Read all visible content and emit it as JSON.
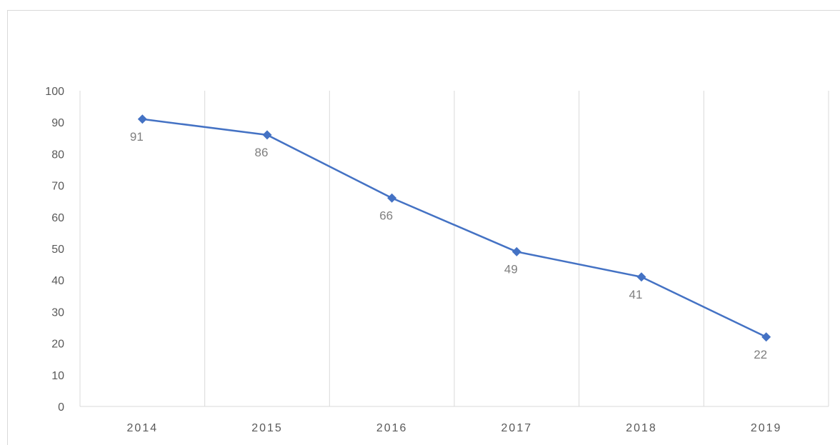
{
  "chart_data": {
    "type": "line",
    "categories": [
      "2014",
      "2015",
      "2016",
      "2017",
      "2018",
      "2019"
    ],
    "series": [
      {
        "values": [
          91,
          86,
          66,
          49,
          41,
          22
        ],
        "color": "#4472c4",
        "marker": "diamond"
      }
    ],
    "yticks": [
      "0",
      "10",
      "20",
      "30",
      "40",
      "50",
      "60",
      "70",
      "80",
      "90",
      "100"
    ],
    "ylim": [
      0,
      100
    ],
    "grid": "vertical",
    "data_labels": [
      "91",
      "86",
      "66",
      "49",
      "41",
      "22"
    ],
    "colors": {
      "line": "#4472c4",
      "grid": "#d9d9d9",
      "tick_text": "#595959",
      "label_text": "#7f7f7f"
    }
  }
}
